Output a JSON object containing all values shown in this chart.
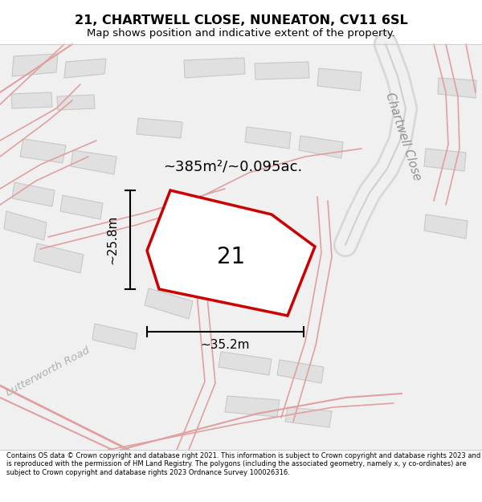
{
  "title": "21, CHARTWELL CLOSE, NUNEATON, CV11 6SL",
  "subtitle": "Map shows position and indicative extent of the property.",
  "area_label": "~385m²/~0.095ac.",
  "plot_number": "21",
  "dim_width": "~35.2m",
  "dim_height": "~25.8m",
  "road_label_chartwell": "Chartwell Close",
  "road_label_lutterworth": "Lutterworth Road",
  "footer": "Contains OS data © Crown copyright and database right 2021. This information is subject to Crown copyright and database rights 2023 and is reproduced with the permission of HM Land Registry. The polygons (including the associated geometry, namely x, y co-ordinates) are subject to Crown copyright and database rights 2023 Ordnance Survey 100026316.",
  "plot_edge_color": "#cc0000",
  "plot_fill_color": "#ffffff",
  "map_bg_color": "#f0f0f0",
  "building_fill": "#e0e0e0",
  "building_edge": "#c8c8c8",
  "road_pink": "#e0a0a0",
  "road_gray_fill": "#d8d8d8",
  "road_gray_inner": "#f0f0f0",
  "road_gray_edge": "#d0d0d0",
  "separator_color": "#cccccc",
  "header_bg": "#ffffff",
  "footer_bg": "#ffffff",
  "dim_line_color": "#000000",
  "text_color": "#000000",
  "road_text_color": "#909090"
}
